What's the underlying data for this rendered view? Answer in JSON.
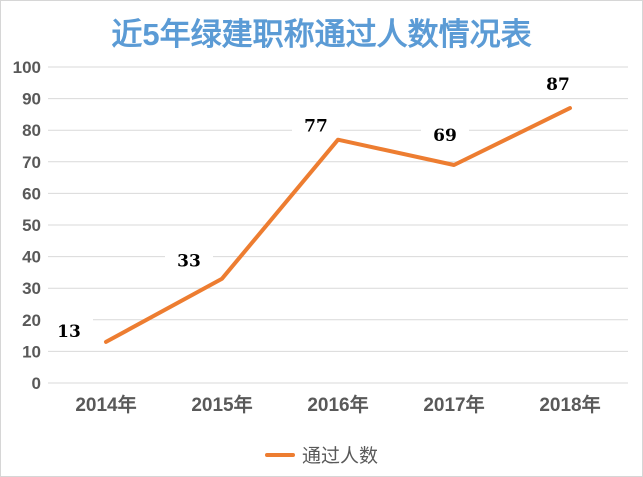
{
  "chart_data": {
    "type": "line",
    "title": "近5年绿建职称通过人数情况表",
    "categories": [
      "2014年",
      "2015年",
      "2016年",
      "2017年",
      "2018年"
    ],
    "series": [
      {
        "name": "通过人数",
        "values": [
          13,
          33,
          77,
          69,
          87
        ]
      }
    ],
    "data_labels": [
      "13",
      "33",
      "77",
      "69",
      "87"
    ],
    "ylabel": "",
    "xlabel": "",
    "ylim": [
      0,
      100
    ],
    "ytick_step": 10,
    "ytick_labels": [
      "0",
      "10",
      "20",
      "30",
      "40",
      "50",
      "60",
      "70",
      "80",
      "90",
      "100"
    ],
    "grid": true,
    "legend_position": "bottom",
    "colors": {
      "line": "#ED7D31",
      "title": "#5B9BD5",
      "axis_label": "#595959",
      "gridline": "#D9D9D9",
      "data_label": "#000000",
      "background": "#FFFFFF",
      "border": "#D6D6D6"
    }
  }
}
